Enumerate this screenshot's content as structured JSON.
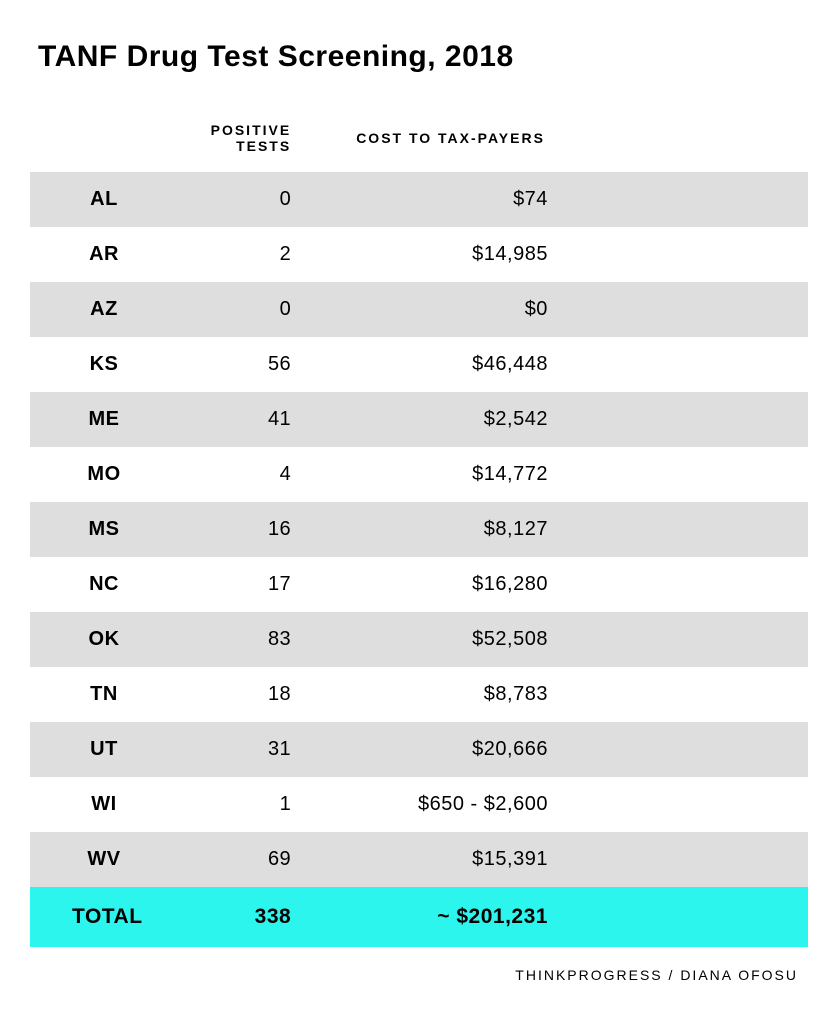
{
  "title": "TANF Drug Test Screening, 2018",
  "columns": {
    "tests": "POSITIVE TESTS",
    "cost": "COST TO TAX-PAYERS"
  },
  "rows": [
    {
      "state": "AL",
      "tests": "0",
      "cost": "$74"
    },
    {
      "state": "AR",
      "tests": "2",
      "cost": "$14,985"
    },
    {
      "state": "AZ",
      "tests": "0",
      "cost": "$0"
    },
    {
      "state": "KS",
      "tests": "56",
      "cost": "$46,448"
    },
    {
      "state": "ME",
      "tests": "41",
      "cost": "$2,542"
    },
    {
      "state": "MO",
      "tests": "4",
      "cost": "$14,772"
    },
    {
      "state": "MS",
      "tests": "16",
      "cost": "$8,127"
    },
    {
      "state": "NC",
      "tests": "17",
      "cost": "$16,280"
    },
    {
      "state": "OK",
      "tests": "83",
      "cost": "$52,508"
    },
    {
      "state": "TN",
      "tests": "18",
      "cost": "$8,783"
    },
    {
      "state": "UT",
      "tests": "31",
      "cost": "$20,666"
    },
    {
      "state": "WI",
      "tests": "1",
      "cost": "$650 - $2,600"
    },
    {
      "state": "WV",
      "tests": "69",
      "cost": "$15,391"
    }
  ],
  "total": {
    "label": "TOTAL",
    "tests": "338",
    "cost": "~ $201,231"
  },
  "credit": "THINKPROGRESS / DIANA OFOSU",
  "style": {
    "stripe_color": "#dedede",
    "total_row_color": "#2bf5ed",
    "background": "#ffffff",
    "text_color": "#000000",
    "title_fontsize": 30,
    "header_fontsize": 14,
    "cell_fontsize": 20,
    "credit_fontsize": 14
  }
}
